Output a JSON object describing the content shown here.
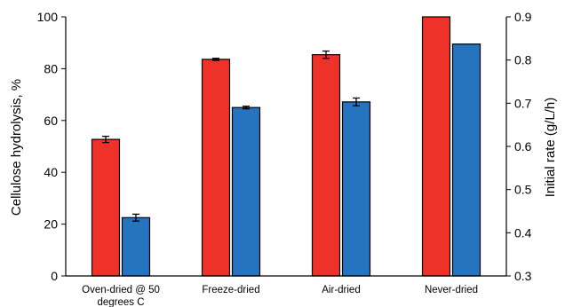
{
  "chart_data": {
    "type": "bar",
    "title": "",
    "categories": [
      "Oven-dried @ 50 degrees C",
      "Freeze-dried",
      "Air-dried",
      "Never-dried"
    ],
    "category_label_lines": [
      [
        "Oven-dried @ 50",
        "degrees C"
      ],
      [
        "Freeze-dried"
      ],
      [
        "Air-dried"
      ],
      [
        "Never-dried"
      ]
    ],
    "ylabel": "Cellulose hydrolysis, %",
    "y2label": "Initial rate (g/L/h)",
    "ylim": [
      0,
      100
    ],
    "y2lim": [
      0.3,
      0.9
    ],
    "yticks": [
      "0",
      "20",
      "40",
      "60",
      "80",
      "100"
    ],
    "y2ticks": [
      "0.3",
      "0.4",
      "0.5",
      "0.6",
      "0.7",
      "0.8",
      "0.9"
    ],
    "grid": false,
    "series": [
      {
        "axis": "left",
        "color": "#ee3129",
        "values": [
          52.7,
          83.6,
          85.4,
          100
        ],
        "errors": [
          1.2,
          0.4,
          1.4,
          null
        ]
      },
      {
        "axis": "right",
        "color": "#2674c0",
        "values": [
          0.435,
          0.69,
          0.703,
          0.837
        ],
        "errors": [
          0.008,
          0.003,
          0.009,
          null
        ]
      }
    ]
  }
}
